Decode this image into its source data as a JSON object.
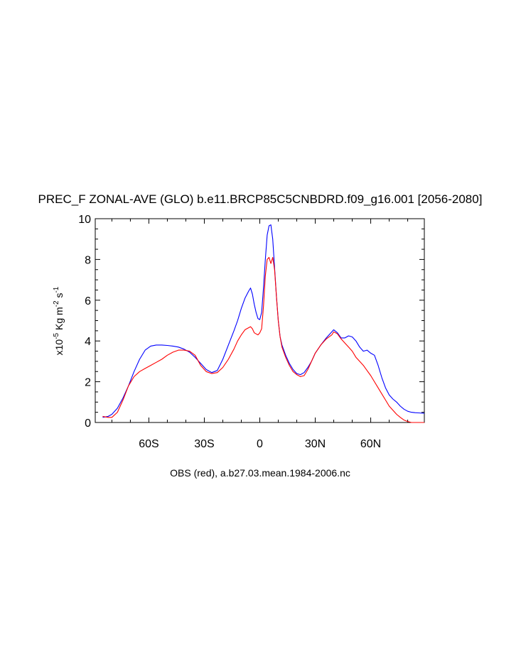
{
  "chart_data": {
    "type": "line",
    "title": "PREC_F ZONAL-AVE (GLO) b.e11.BRCP85C5CNBDRD.f09_g16.001 [2056-2080]",
    "caption": "OBS (red), a.b27.03.mean.1984-2006.nc",
    "ylabel": {
      "prefix": "x10",
      "exp1": "-5",
      "mid": " Kg m",
      "exp2": "-2",
      "mid2": " s",
      "exp3": "-1"
    },
    "xlim": [
      -89,
      89
    ],
    "ylim": [
      0,
      10
    ],
    "xticks": [
      {
        "value": -60,
        "label": "60S"
      },
      {
        "value": -30,
        "label": "30S"
      },
      {
        "value": 0,
        "label": "0"
      },
      {
        "value": 30,
        "label": "30N"
      },
      {
        "value": 60,
        "label": "60N"
      }
    ],
    "yticks": [
      {
        "value": 0,
        "label": "0"
      },
      {
        "value": 2,
        "label": "2"
      },
      {
        "value": 4,
        "label": "4"
      },
      {
        "value": 6,
        "label": "6"
      },
      {
        "value": 8,
        "label": "8"
      },
      {
        "value": 10,
        "label": "10"
      }
    ],
    "grid": false,
    "series": [
      {
        "color": "#0000ff",
        "x": [
          -85,
          -82,
          -80,
          -77,
          -74,
          -71,
          -68,
          -65,
          -62,
          -59,
          -56,
          -53,
          -50,
          -47,
          -44,
          -41,
          -38,
          -35,
          -32,
          -29,
          -26,
          -23,
          -20,
          -17,
          -14,
          -12,
          -10,
          -8,
          -6,
          -5,
          -4,
          -3,
          -2,
          -1,
          0,
          1,
          2,
          3,
          4,
          5,
          6,
          7,
          8,
          9,
          10,
          11,
          12,
          14,
          16,
          18,
          20,
          22,
          24,
          26,
          28,
          30,
          33,
          36,
          39,
          40,
          42,
          44,
          46,
          48,
          50,
          52,
          54,
          56,
          58,
          60,
          62,
          64,
          66,
          68,
          70,
          72,
          74,
          76,
          78,
          80,
          82,
          84,
          86,
          89
        ],
        "y": [
          0.25,
          0.3,
          0.4,
          0.7,
          1.2,
          1.8,
          2.5,
          3.1,
          3.55,
          3.75,
          3.8,
          3.8,
          3.78,
          3.75,
          3.7,
          3.6,
          3.45,
          3.2,
          2.9,
          2.6,
          2.45,
          2.55,
          3.1,
          3.8,
          4.5,
          5.0,
          5.6,
          6.1,
          6.45,
          6.6,
          6.3,
          5.8,
          5.4,
          5.1,
          5.05,
          5.4,
          6.6,
          8.0,
          9.2,
          9.65,
          9.7,
          9.0,
          7.6,
          6.2,
          5.0,
          4.2,
          3.8,
          3.3,
          2.9,
          2.6,
          2.4,
          2.35,
          2.45,
          2.7,
          3.0,
          3.4,
          3.8,
          4.15,
          4.45,
          4.55,
          4.4,
          4.15,
          4.15,
          4.25,
          4.2,
          4.0,
          3.7,
          3.5,
          3.55,
          3.4,
          3.3,
          2.8,
          2.2,
          1.7,
          1.35,
          1.15,
          1.0,
          0.8,
          0.65,
          0.55,
          0.5,
          0.48,
          0.47,
          0.45
        ]
      },
      {
        "color": "#ff0000",
        "x": [
          -85,
          -82,
          -80,
          -77,
          -74,
          -71,
          -68,
          -65,
          -62,
          -59,
          -56,
          -53,
          -50,
          -47,
          -44,
          -41,
          -38,
          -35,
          -32,
          -29,
          -26,
          -23,
          -20,
          -17,
          -14,
          -12,
          -10,
          -8,
          -6,
          -5,
          -4,
          -3,
          -2,
          -1,
          0,
          1,
          2,
          3,
          4,
          5,
          6,
          7,
          8,
          9,
          10,
          11,
          12,
          14,
          16,
          18,
          20,
          22,
          24,
          26,
          28,
          30,
          33,
          36,
          39,
          40,
          42,
          44,
          46,
          48,
          50,
          52,
          54,
          56,
          58,
          60,
          62,
          64,
          66,
          68,
          70,
          72,
          74,
          76,
          78,
          80,
          82,
          84,
          86,
          89
        ],
        "y": [
          0.3,
          0.25,
          0.25,
          0.5,
          1.1,
          1.8,
          2.25,
          2.5,
          2.65,
          2.8,
          2.95,
          3.1,
          3.3,
          3.45,
          3.55,
          3.55,
          3.5,
          3.3,
          2.8,
          2.5,
          2.4,
          2.45,
          2.7,
          3.1,
          3.6,
          4.0,
          4.3,
          4.55,
          4.65,
          4.7,
          4.6,
          4.4,
          4.35,
          4.3,
          4.4,
          4.6,
          5.7,
          7.2,
          8.0,
          8.1,
          7.8,
          8.1,
          7.5,
          6.2,
          5.0,
          4.2,
          3.7,
          3.2,
          2.8,
          2.5,
          2.35,
          2.25,
          2.3,
          2.6,
          3.0,
          3.4,
          3.8,
          4.1,
          4.3,
          4.45,
          4.35,
          4.1,
          3.9,
          3.7,
          3.5,
          3.2,
          3.0,
          2.8,
          2.55,
          2.3,
          2.0,
          1.7,
          1.4,
          1.1,
          0.8,
          0.6,
          0.4,
          0.25,
          0.12,
          0.05,
          0.0,
          0.0,
          0.0,
          0.0
        ]
      }
    ]
  }
}
